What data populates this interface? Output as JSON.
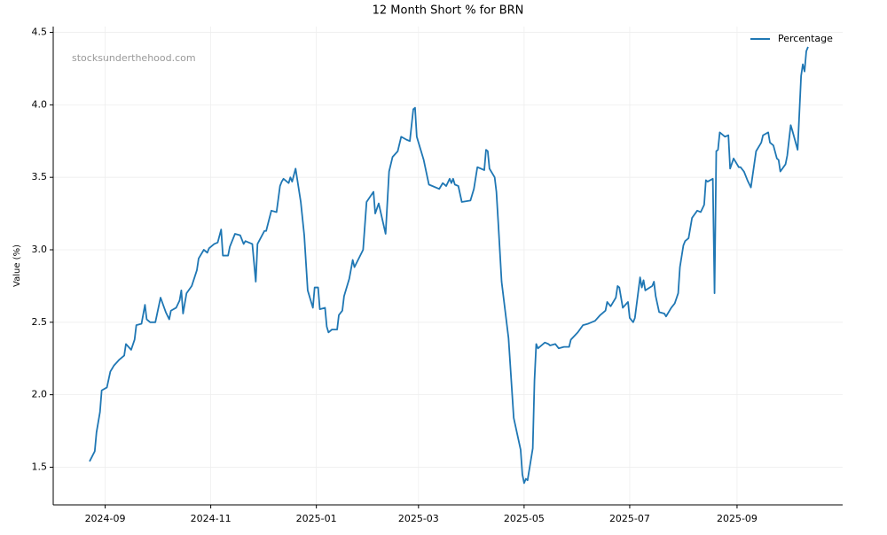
{
  "chart_data": {
    "type": "line",
    "title": "12 Month Short % for BRN",
    "ylabel": "Value (%)",
    "watermark": "stocksunderthehood.com",
    "legend": "upper right",
    "grid": true,
    "xlim": [
      19937,
      20393
    ],
    "xticks": [
      {
        "value": 19967,
        "label": "2024-09"
      },
      {
        "value": 20028,
        "label": "2024-11"
      },
      {
        "value": 20089,
        "label": "2025-01"
      },
      {
        "value": 20148,
        "label": "2025-03"
      },
      {
        "value": 20209,
        "label": "2025-05"
      },
      {
        "value": 20270,
        "label": "2025-07"
      },
      {
        "value": 20332,
        "label": "2025-09"
      }
    ],
    "ylim": [
      1.24,
      4.54
    ],
    "yticks": [
      1.5,
      {
        "value": 2,
        "label": "2.0"
      },
      2.5,
      {
        "value": 3,
        "label": "3.0"
      },
      3.5,
      {
        "value": 4,
        "label": "4.0"
      },
      4.5
    ],
    "x": [
      19958,
      19961,
      19962,
      19964,
      19965,
      19968,
      19970,
      19972,
      19975,
      19978,
      19979,
      19982,
      19984,
      19985,
      19988,
      19990,
      19991,
      19993,
      19996,
      19999,
      20002,
      20004,
      20005,
      20008,
      20010,
      20011,
      20012,
      20014,
      20017,
      20020,
      20021,
      20024,
      20026,
      20027,
      20030,
      20032,
      20034,
      20035,
      20038,
      20039,
      20042,
      20045,
      20047,
      20048,
      20052,
      20054,
      20055,
      20059,
      20060,
      20063,
      20066,
      20068,
      20069,
      20070,
      20073,
      20074,
      20075,
      20077,
      20080,
      20082,
      20084,
      20087,
      20088,
      20090,
      20091,
      20094,
      20095,
      20096,
      20098,
      20101,
      20102,
      20104,
      20105,
      20108,
      20110,
      20111,
      20116,
      20118,
      20122,
      20123,
      20125,
      20129,
      20131,
      20133,
      20136,
      20138,
      20141,
      20143,
      20145,
      20146,
      20147,
      20151,
      20154,
      20156,
      20160,
      20162,
      20164,
      20166,
      20167,
      20168,
      20169,
      20171,
      20173,
      20178,
      20180,
      20182,
      20186,
      20187,
      20188,
      20189,
      20192,
      20193,
      20194,
      20196,
      20200,
      20203,
      20207,
      20208,
      20209,
      20210,
      20211,
      20214,
      20215,
      20216,
      20217,
      20221,
      20223,
      20224,
      20227,
      20229,
      20232,
      20235,
      20236,
      20240,
      20243,
      20246,
      20250,
      20253,
      20256,
      20257,
      20259,
      20262,
      20263,
      20264,
      20266,
      20269,
      20270,
      20272,
      20273,
      20276,
      20277,
      20278,
      20279,
      20283,
      20284,
      20285,
      20287,
      20290,
      20291,
      20294,
      20296,
      20298,
      20299,
      20301,
      20302,
      20304,
      20306,
      20309,
      20311,
      20313,
      20314,
      20315,
      20318,
      20319,
      20320,
      20321,
      20322,
      20325,
      20327,
      20328,
      20330,
      20333,
      20334,
      20336,
      20338,
      20340,
      20343,
      20346,
      20347,
      20350,
      20351,
      20353,
      20355,
      20356,
      20357,
      20360,
      20361,
      20363,
      20364,
      20367,
      20369,
      20370,
      20371,
      20372,
      20373
    ],
    "series": [
      {
        "name": "Percentage",
        "color": "#1f77b4",
        "values": [
          1.54,
          1.61,
          1.74,
          1.88,
          2.03,
          2.05,
          2.16,
          2.2,
          2.24,
          2.27,
          2.35,
          2.31,
          2.38,
          2.48,
          2.49,
          2.62,
          2.52,
          2.5,
          2.5,
          2.67,
          2.57,
          2.52,
          2.58,
          2.6,
          2.65,
          2.72,
          2.56,
          2.7,
          2.75,
          2.86,
          2.94,
          3.0,
          2.98,
          3.01,
          3.04,
          3.05,
          3.14,
          2.96,
          2.96,
          3.02,
          3.11,
          3.1,
          3.04,
          3.06,
          3.04,
          2.78,
          3.04,
          3.13,
          3.13,
          3.27,
          3.26,
          3.44,
          3.47,
          3.49,
          3.46,
          3.5,
          3.47,
          3.56,
          3.33,
          3.1,
          2.72,
          2.6,
          2.74,
          2.74,
          2.59,
          2.6,
          2.47,
          2.43,
          2.45,
          2.45,
          2.55,
          2.58,
          2.68,
          2.8,
          2.93,
          2.88,
          3.0,
          3.33,
          3.4,
          3.25,
          3.32,
          3.11,
          3.54,
          3.64,
          3.68,
          3.78,
          3.76,
          3.75,
          3.97,
          3.98,
          3.78,
          3.62,
          3.45,
          3.44,
          3.42,
          3.46,
          3.44,
          3.49,
          3.46,
          3.49,
          3.45,
          3.44,
          3.33,
          3.34,
          3.42,
          3.57,
          3.55,
          3.69,
          3.68,
          3.56,
          3.5,
          3.4,
          3.2,
          2.78,
          2.39,
          1.84,
          1.62,
          1.45,
          1.39,
          1.42,
          1.41,
          1.63,
          2.1,
          2.35,
          2.32,
          2.36,
          2.35,
          2.34,
          2.35,
          2.32,
          2.33,
          2.33,
          2.38,
          2.43,
          2.48,
          2.49,
          2.51,
          2.55,
          2.58,
          2.64,
          2.61,
          2.67,
          2.75,
          2.74,
          2.6,
          2.64,
          2.53,
          2.5,
          2.53,
          2.81,
          2.74,
          2.79,
          2.72,
          2.75,
          2.78,
          2.68,
          2.57,
          2.56,
          2.54,
          2.6,
          2.63,
          2.7,
          2.88,
          3.03,
          3.06,
          3.08,
          3.22,
          3.27,
          3.26,
          3.31,
          3.48,
          3.47,
          3.49,
          2.7,
          3.68,
          3.69,
          3.81,
          3.78,
          3.79,
          3.56,
          3.63,
          3.57,
          3.57,
          3.54,
          3.48,
          3.43,
          3.68,
          3.74,
          3.79,
          3.81,
          3.74,
          3.72,
          3.63,
          3.62,
          3.54,
          3.59,
          3.65,
          3.86,
          3.82,
          3.69,
          4.2,
          4.28,
          4.23,
          4.37,
          4.4
        ]
      }
    ]
  }
}
